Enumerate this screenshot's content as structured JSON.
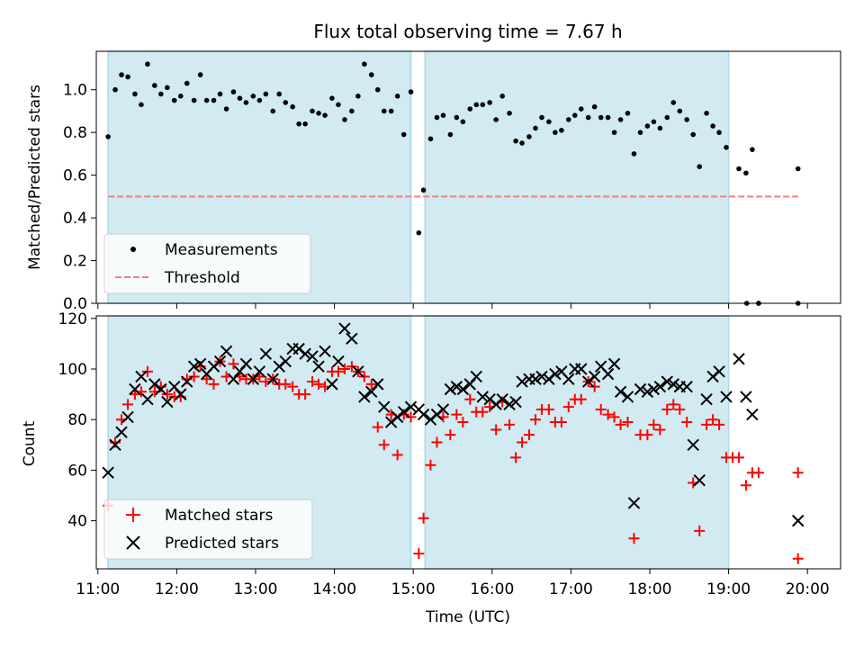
{
  "chart_data": [
    {
      "type": "scatter",
      "title": "Flux total observing time = 7.67 h",
      "ylabel": "Matched/Predicted stars",
      "xlim": [
        10.98,
        20.42
      ],
      "ylim": [
        0,
        1.18
      ],
      "yticks": [
        0.0,
        0.2,
        0.4,
        0.6,
        0.8,
        1.0
      ],
      "yticklabels": [
        "0.0",
        "0.2",
        "0.4",
        "0.6",
        "0.8",
        "1.0"
      ],
      "grid": false,
      "legend": "lower-left",
      "shaded_intervals": [
        [
          11.13,
          14.97
        ],
        [
          15.15,
          19.0
        ]
      ],
      "shade_color": "#add8e6",
      "series": [
        {
          "name": "Measurements",
          "marker": "dot",
          "color": "#000000",
          "x": [
            11.13,
            11.22,
            11.3,
            11.38,
            11.47,
            11.55,
            11.63,
            11.72,
            11.8,
            11.88,
            11.97,
            12.05,
            12.13,
            12.22,
            12.3,
            12.38,
            12.47,
            12.55,
            12.63,
            12.72,
            12.8,
            12.88,
            12.97,
            13.05,
            13.13,
            13.22,
            13.3,
            13.38,
            13.47,
            13.55,
            13.63,
            13.72,
            13.8,
            13.88,
            13.97,
            14.05,
            14.13,
            14.22,
            14.3,
            14.38,
            14.47,
            14.55,
            14.63,
            14.72,
            14.8,
            14.88,
            14.97,
            15.07,
            15.13,
            15.22,
            15.3,
            15.38,
            15.47,
            15.55,
            15.63,
            15.72,
            15.8,
            15.88,
            15.97,
            16.05,
            16.13,
            16.22,
            16.3,
            16.38,
            16.47,
            16.55,
            16.63,
            16.72,
            16.8,
            16.88,
            16.97,
            17.05,
            17.13,
            17.22,
            17.3,
            17.38,
            17.47,
            17.55,
            17.63,
            17.72,
            17.8,
            17.88,
            17.97,
            18.05,
            18.13,
            18.22,
            18.3,
            18.38,
            18.47,
            18.55,
            18.63,
            18.72,
            18.8,
            18.88,
            18.97,
            19.13,
            19.22,
            19.3,
            19.38,
            19.88
          ],
          "y": [
            0.78,
            1.0,
            1.07,
            1.06,
            0.98,
            0.93,
            1.12,
            1.02,
            0.98,
            1.01,
            0.95,
            0.97,
            1.03,
            0.95,
            1.07,
            0.95,
            0.95,
            0.98,
            0.91,
            0.99,
            0.96,
            0.94,
            0.97,
            0.95,
            0.98,
            0.9,
            0.98,
            0.94,
            0.92,
            0.84,
            0.84,
            0.9,
            0.89,
            0.88,
            0.96,
            0.93,
            0.86,
            0.9,
            0.97,
            1.12,
            1.07,
            1.0,
            0.9,
            0.9,
            0.97,
            0.79,
            0.99,
            0.33,
            0.53,
            0.77,
            0.87,
            0.88,
            0.79,
            0.87,
            0.85,
            0.91,
            0.93,
            0.93,
            0.94,
            0.86,
            0.97,
            0.89,
            0.76,
            0.75,
            0.78,
            0.82,
            0.87,
            0.85,
            0.8,
            0.81,
            0.86,
            0.88,
            0.91,
            0.87,
            0.92,
            0.87,
            0.87,
            0.8,
            0.86,
            0.89,
            0.7,
            0.8,
            0.83,
            0.85,
            0.82,
            0.87,
            0.94,
            0.9,
            0.86,
            0.79,
            0.64,
            0.89,
            0.83,
            0.8,
            0.73,
            0.63,
            0.61,
            0.72,
            0.0,
            0.63
          ]
        },
        {
          "name": "Threshold",
          "marker": "dashed-line",
          "color": "#f08080",
          "x": [
            11.13,
            19.88
          ],
          "y": [
            0.5,
            0.5
          ]
        }
      ],
      "zero_points": [
        [
          19.23,
          0.0
        ],
        [
          19.38,
          0.0
        ],
        [
          19.88,
          0.0
        ]
      ]
    },
    {
      "type": "scatter",
      "xlabel": "Time (UTC)",
      "ylabel": "Count",
      "xlim": [
        10.98,
        20.42
      ],
      "ylim": [
        21,
        121
      ],
      "yticks": [
        40,
        60,
        80,
        100,
        120
      ],
      "yticklabels": [
        "40",
        "60",
        "80",
        "100",
        "120"
      ],
      "xticks": [
        11,
        12,
        13,
        14,
        15,
        16,
        17,
        18,
        19,
        20
      ],
      "xticklabels": [
        "11:00",
        "12:00",
        "13:00",
        "14:00",
        "15:00",
        "16:00",
        "17:00",
        "18:00",
        "19:00",
        "20:00"
      ],
      "grid": false,
      "legend": "lower-left",
      "shaded_intervals": [
        [
          11.13,
          14.97
        ],
        [
          15.15,
          19.0
        ]
      ],
      "shade_color": "#add8e6",
      "series": [
        {
          "name": "Matched stars",
          "marker": "plus",
          "color": "#ff0000",
          "x": [
            11.13,
            11.22,
            11.3,
            11.38,
            11.47,
            11.55,
            11.63,
            11.72,
            11.8,
            11.88,
            11.97,
            12.05,
            12.13,
            12.22,
            12.3,
            12.38,
            12.47,
            12.55,
            12.63,
            12.72,
            12.8,
            12.88,
            12.97,
            13.05,
            13.13,
            13.22,
            13.3,
            13.38,
            13.47,
            13.55,
            13.63,
            13.72,
            13.8,
            13.88,
            13.97,
            14.05,
            14.13,
            14.22,
            14.3,
            14.38,
            14.47,
            14.55,
            14.63,
            14.72,
            14.8,
            14.88,
            14.97,
            15.07,
            15.13,
            15.22,
            15.3,
            15.38,
            15.47,
            15.55,
            15.63,
            15.72,
            15.8,
            15.88,
            15.97,
            16.05,
            16.13,
            16.22,
            16.3,
            16.38,
            16.47,
            16.55,
            16.63,
            16.72,
            16.8,
            16.88,
            16.97,
            17.05,
            17.13,
            17.22,
            17.3,
            17.38,
            17.47,
            17.55,
            17.63,
            17.72,
            17.8,
            17.88,
            17.97,
            18.05,
            18.13,
            18.22,
            18.3,
            18.38,
            18.47,
            18.55,
            18.63,
            18.72,
            18.8,
            18.88,
            18.97,
            19.05,
            19.13,
            19.22,
            19.3,
            19.38,
            19.88,
            19.88
          ],
          "y": [
            46,
            71,
            80,
            86,
            90,
            91,
            99,
            91,
            93,
            90,
            89,
            89,
            96,
            97,
            101,
            96,
            94,
            103,
            97,
            102,
            97,
            96,
            96,
            97,
            95,
            96,
            94,
            94,
            93,
            90,
            90,
            95,
            94,
            93,
            99,
            99,
            100,
            101,
            99,
            97,
            94,
            77,
            70,
            82,
            66,
            82,
            81,
            27,
            41,
            62,
            71,
            81,
            74,
            82,
            79,
            88,
            83,
            83,
            85,
            76,
            87,
            78,
            65,
            71,
            74,
            80,
            84,
            84,
            79,
            79,
            85,
            88,
            88,
            95,
            93,
            84,
            82,
            81,
            78,
            79,
            33,
            74,
            74,
            78,
            76,
            84,
            86,
            84,
            79,
            55,
            36,
            78,
            80,
            78,
            65,
            65,
            65,
            54,
            59,
            59,
            25,
            59
          ]
        },
        {
          "name": "Predicted stars",
          "marker": "x",
          "color": "#000000",
          "x": [
            11.13,
            11.22,
            11.3,
            11.38,
            11.47,
            11.55,
            11.63,
            11.72,
            11.8,
            11.88,
            11.97,
            12.05,
            12.13,
            12.22,
            12.3,
            12.38,
            12.47,
            12.55,
            12.63,
            12.72,
            12.8,
            12.88,
            12.97,
            13.05,
            13.13,
            13.22,
            13.3,
            13.38,
            13.47,
            13.55,
            13.63,
            13.72,
            13.8,
            13.88,
            13.97,
            14.05,
            14.13,
            14.22,
            14.3,
            14.38,
            14.47,
            14.55,
            14.63,
            14.72,
            14.8,
            14.88,
            14.97,
            15.07,
            15.13,
            15.22,
            15.3,
            15.38,
            15.47,
            15.55,
            15.63,
            15.72,
            15.8,
            15.88,
            15.97,
            16.05,
            16.13,
            16.22,
            16.3,
            16.38,
            16.47,
            16.55,
            16.63,
            16.72,
            16.8,
            16.88,
            16.97,
            17.05,
            17.13,
            17.22,
            17.3,
            17.38,
            17.47,
            17.55,
            17.63,
            17.72,
            17.8,
            17.88,
            17.97,
            18.05,
            18.13,
            18.22,
            18.3,
            18.38,
            18.47,
            18.55,
            18.63,
            18.72,
            18.8,
            18.88,
            18.97,
            19.13,
            19.22,
            19.3,
            19.88
          ],
          "y": [
            59,
            70,
            75,
            81,
            92,
            97,
            88,
            94,
            92,
            87,
            93,
            90,
            95,
            101,
            102,
            98,
            101,
            103,
            107,
            96,
            99,
            102,
            96,
            99,
            106,
            96,
            101,
            103,
            108,
            108,
            106,
            105,
            101,
            107,
            94,
            103,
            116,
            112,
            99,
            89,
            91,
            94,
            85,
            79,
            81,
            83,
            85,
            84,
            82,
            80,
            82,
            84,
            92,
            93,
            92,
            94,
            97,
            89,
            88,
            86,
            88,
            86,
            87,
            95,
            96,
            96,
            97,
            96,
            98,
            99,
            96,
            100,
            100,
            95,
            97,
            101,
            98,
            102,
            91,
            89,
            47,
            92,
            91,
            92,
            93,
            95,
            94,
            93,
            93,
            70,
            56,
            88,
            97,
            99,
            89,
            104,
            89,
            82,
            40
          ]
        }
      ]
    }
  ]
}
